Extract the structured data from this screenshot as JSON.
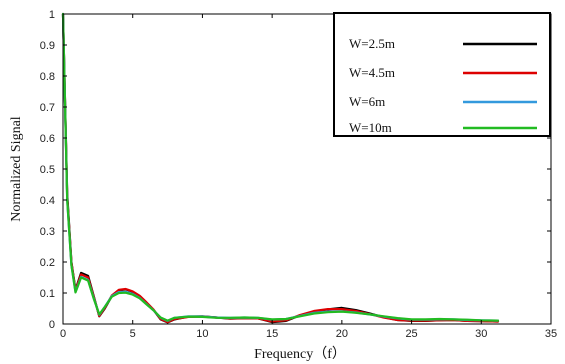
{
  "chart_data": {
    "type": "line",
    "title": "",
    "xlabel": "Frequency（f）",
    "ylabel": "Normalized Signal",
    "xlim": [
      0,
      35
    ],
    "ylim": [
      0,
      1
    ],
    "xticks": [
      0,
      5,
      10,
      15,
      20,
      25,
      30,
      35
    ],
    "yticks": [
      0,
      0.1,
      0.2,
      0.3,
      0.4,
      0.5,
      0.6,
      0.7,
      0.8,
      0.9,
      1
    ],
    "xtick_labels": [
      "0",
      "5",
      "10",
      "15",
      "20",
      "25",
      "30",
      "35"
    ],
    "ytick_labels": [
      "0",
      "0.1",
      "0.2",
      "0.3",
      "0.4",
      "0.5",
      "0.6",
      "0.7",
      "0.8",
      "0.9",
      "1"
    ],
    "grid": false,
    "legend_position": "top-right",
    "series": [
      {
        "name": "W=2.5m",
        "color": "#000000",
        "x": [
          0,
          0.3,
          0.6,
          0.9,
          1.3,
          1.8,
          2.2,
          2.6,
          3.0,
          3.5,
          4.0,
          4.5,
          5.0,
          5.5,
          6.0,
          6.5,
          7.0,
          7.5,
          8.0,
          9.0,
          10.0,
          11.0,
          12.0,
          13.0,
          14.0,
          15.0,
          16.0,
          17.0,
          18.0,
          19.0,
          20.0,
          21.0,
          22.0,
          23.0,
          24.0,
          25.0,
          26.0,
          27.0,
          28.0,
          29.0,
          30.0,
          31.2
        ],
        "y": [
          1.0,
          0.42,
          0.2,
          0.11,
          0.165,
          0.155,
          0.09,
          0.025,
          0.05,
          0.09,
          0.108,
          0.112,
          0.104,
          0.09,
          0.068,
          0.045,
          0.015,
          0.005,
          0.015,
          0.024,
          0.025,
          0.021,
          0.017,
          0.019,
          0.018,
          0.006,
          0.01,
          0.028,
          0.04,
          0.047,
          0.052,
          0.045,
          0.034,
          0.022,
          0.013,
          0.01,
          0.01,
          0.012,
          0.013,
          0.01,
          0.009,
          0.008
        ]
      },
      {
        "name": "W=4.5m",
        "color": "#dd0000",
        "x": [
          0,
          0.3,
          0.6,
          0.9,
          1.3,
          1.8,
          2.2,
          2.6,
          3.0,
          3.5,
          4.0,
          4.5,
          5.0,
          5.5,
          6.0,
          6.5,
          7.0,
          7.5,
          8.0,
          9.0,
          10.0,
          11.0,
          12.0,
          13.0,
          14.0,
          15.0,
          16.0,
          17.0,
          18.0,
          19.0,
          20.0,
          21.0,
          22.0,
          23.0,
          24.0,
          25.0,
          26.0,
          27.0,
          28.0,
          29.0,
          30.0,
          31.2
        ],
        "y": [
          1.0,
          0.41,
          0.2,
          0.108,
          0.16,
          0.15,
          0.088,
          0.026,
          0.052,
          0.092,
          0.11,
          0.113,
          0.105,
          0.091,
          0.069,
          0.046,
          0.016,
          0.006,
          0.016,
          0.023,
          0.024,
          0.021,
          0.018,
          0.019,
          0.018,
          0.008,
          0.012,
          0.029,
          0.042,
          0.048,
          0.048,
          0.042,
          0.032,
          0.021,
          0.013,
          0.011,
          0.011,
          0.012,
          0.013,
          0.01,
          0.009,
          0.008
        ]
      },
      {
        "name": "W=6m",
        "color": "#3399dd",
        "x": [
          0,
          0.3,
          0.6,
          0.9,
          1.3,
          1.8,
          2.2,
          2.6,
          3.0,
          3.5,
          4.0,
          4.5,
          5.0,
          5.5,
          6.0,
          6.5,
          7.0,
          7.5,
          8.0,
          9.0,
          10.0,
          11.0,
          12.0,
          13.0,
          14.0,
          15.0,
          16.0,
          17.0,
          18.0,
          19.0,
          20.0,
          21.0,
          22.0,
          23.0,
          24.0,
          25.0,
          26.0,
          27.0,
          28.0,
          29.0,
          30.0,
          31.2
        ],
        "y": [
          1.0,
          0.4,
          0.19,
          0.104,
          0.152,
          0.142,
          0.084,
          0.03,
          0.055,
          0.09,
          0.103,
          0.104,
          0.097,
          0.084,
          0.064,
          0.044,
          0.02,
          0.01,
          0.02,
          0.025,
          0.024,
          0.021,
          0.02,
          0.021,
          0.02,
          0.014,
          0.016,
          0.026,
          0.036,
          0.04,
          0.041,
          0.037,
          0.031,
          0.024,
          0.018,
          0.014,
          0.014,
          0.015,
          0.015,
          0.013,
          0.012,
          0.011
        ]
      },
      {
        "name": "W=10m",
        "color": "#22bb22",
        "x": [
          0,
          0.3,
          0.6,
          0.9,
          1.3,
          1.8,
          2.2,
          2.6,
          3.0,
          3.5,
          4.0,
          4.5,
          5.0,
          5.5,
          6.0,
          6.5,
          7.0,
          7.5,
          8.0,
          9.0,
          10.0,
          11.0,
          12.0,
          13.0,
          14.0,
          15.0,
          16.0,
          17.0,
          18.0,
          19.0,
          20.0,
          21.0,
          22.0,
          23.0,
          24.0,
          25.0,
          26.0,
          27.0,
          28.0,
          29.0,
          30.0,
          31.2
        ],
        "y": [
          1.0,
          0.4,
          0.19,
          0.102,
          0.15,
          0.14,
          0.082,
          0.031,
          0.055,
          0.088,
          0.1,
          0.101,
          0.095,
          0.083,
          0.063,
          0.044,
          0.021,
          0.011,
          0.02,
          0.024,
          0.023,
          0.02,
          0.02,
          0.021,
          0.02,
          0.015,
          0.016,
          0.025,
          0.034,
          0.038,
          0.04,
          0.036,
          0.031,
          0.025,
          0.019,
          0.015,
          0.015,
          0.016,
          0.015,
          0.014,
          0.012,
          0.011
        ]
      }
    ]
  }
}
